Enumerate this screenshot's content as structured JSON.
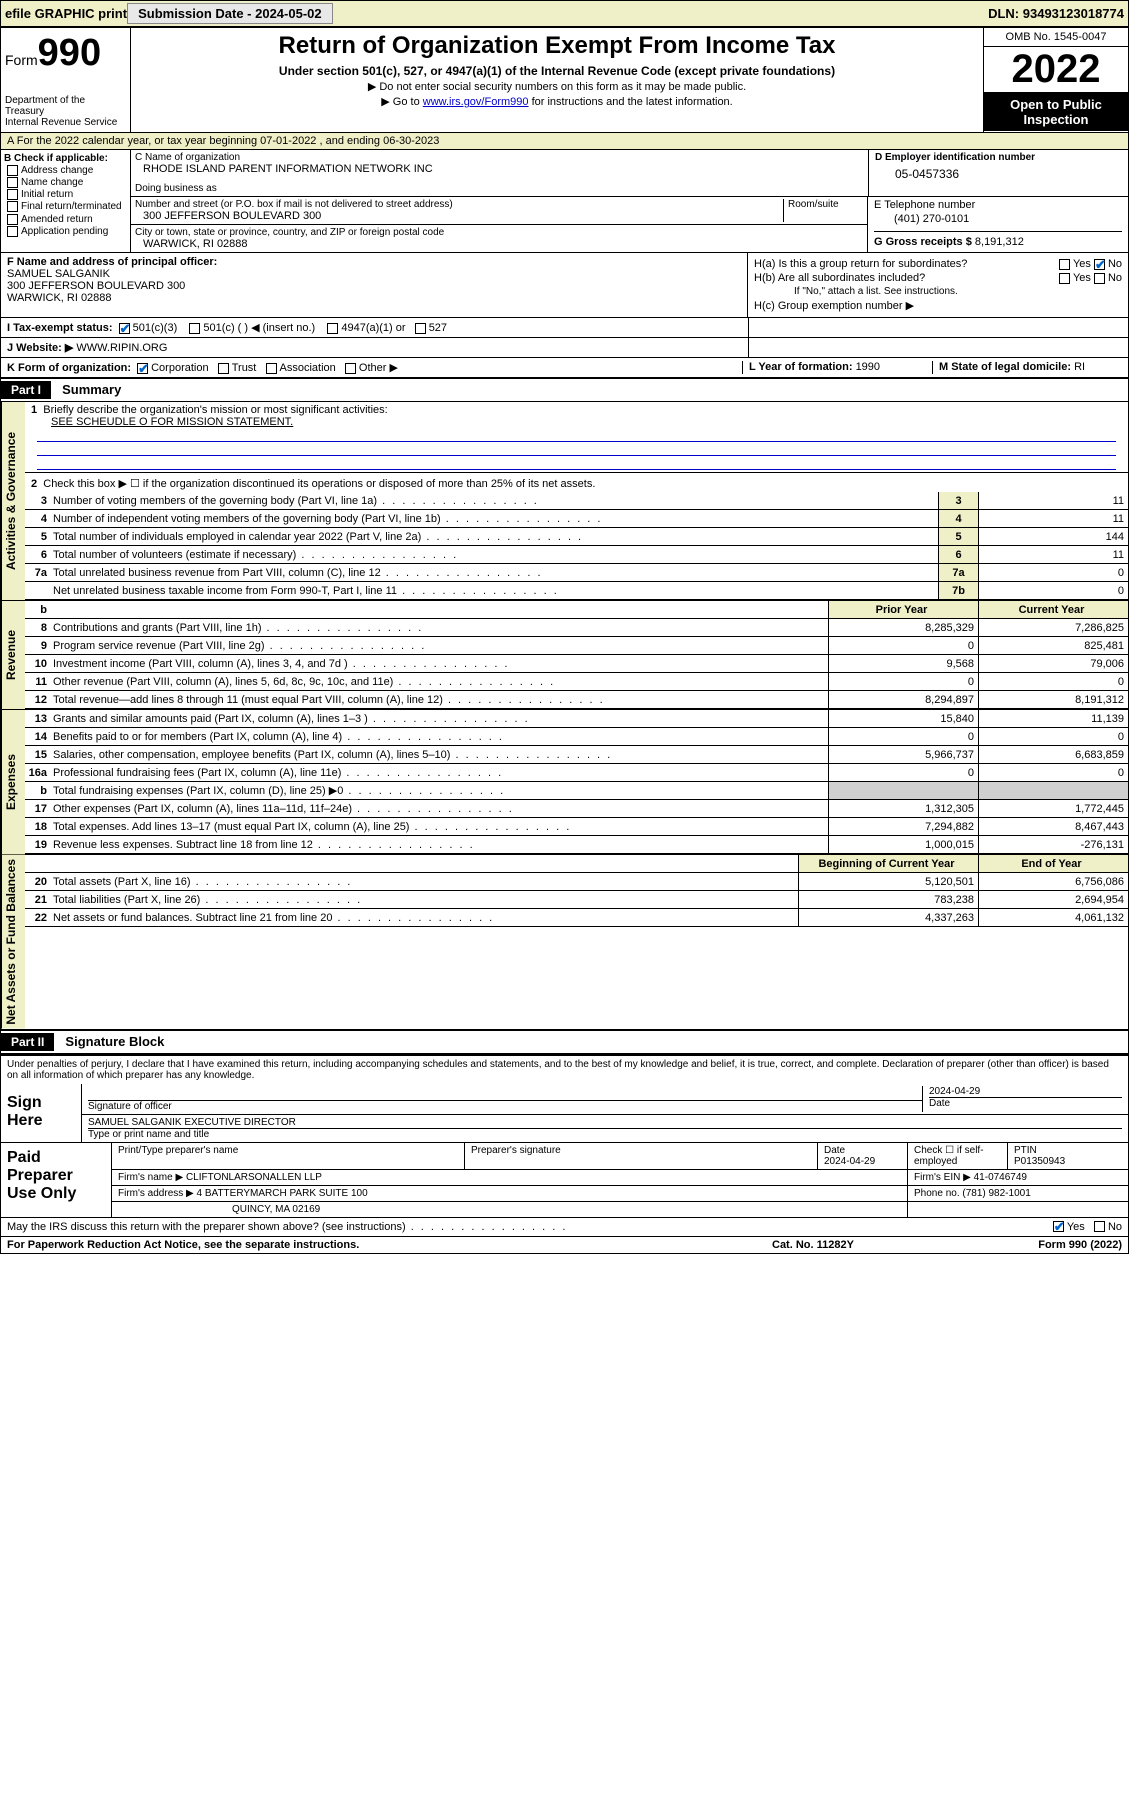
{
  "toolbar": {
    "efile": "efile GRAPHIC print",
    "submission_label": "Submission Date - ",
    "submission_date": "2024-05-02",
    "dln_label": "DLN: ",
    "dln": "93493123018774"
  },
  "header": {
    "form_word": "Form",
    "form_num": "990",
    "dept": "Department of the Treasury",
    "irs": "Internal Revenue Service",
    "title": "Return of Organization Exempt From Income Tax",
    "subtitle": "Under section 501(c), 527, or 4947(a)(1) of the Internal Revenue Code (except private foundations)",
    "note1": "▶ Do not enter social security numbers on this form as it may be made public.",
    "note2_pre": "▶ Go to ",
    "note2_link": "www.irs.gov/Form990",
    "note2_post": " for instructions and the latest information.",
    "omb": "OMB No. 1545-0047",
    "year": "2022",
    "open": "Open to Public Inspection"
  },
  "row_a": "A For the 2022 calendar year, or tax year beginning 07-01-2022  , and ending 06-30-2023",
  "b": {
    "label": "B Check if applicable:",
    "opts": [
      "Address change",
      "Name change",
      "Initial return",
      "Final return/terminated",
      "Amended return",
      "Application pending"
    ]
  },
  "c": {
    "name_label": "C Name of organization",
    "name": "RHODE ISLAND PARENT INFORMATION NETWORK INC",
    "dba_label": "Doing business as",
    "dba": "",
    "addr_label": "Number and street (or P.O. box if mail is not delivered to street address)",
    "addr": "300 JEFFERSON BOULEVARD 300",
    "room_label": "Room/suite",
    "city_label": "City or town, state or province, country, and ZIP or foreign postal code",
    "city": "WARWICK, RI  02888"
  },
  "d": {
    "label": "D Employer identification number",
    "val": "05-0457336"
  },
  "e": {
    "label": "E Telephone number",
    "val": "(401) 270-0101"
  },
  "g": {
    "label": "G Gross receipts $ ",
    "val": "8,191,312"
  },
  "f": {
    "label": "F Name and address of principal officer:",
    "name": "SAMUEL SALGANIK",
    "addr": "300 JEFFERSON BOULEVARD 300",
    "city": "WARWICK, RI  02888"
  },
  "h": {
    "a_label": "H(a)  Is this a group return for subordinates?",
    "b_label": "H(b)  Are all subordinates included?",
    "b_note": "If \"No,\" attach a list. See instructions.",
    "c_label": "H(c)  Group exemption number ▶",
    "yes": "Yes",
    "no": "No"
  },
  "i": {
    "label": "I  Tax-exempt status:",
    "o1": "501(c)(3)",
    "o2": "501(c) (  ) ◀ (insert no.)",
    "o3": "4947(a)(1) or",
    "o4": "527"
  },
  "j": {
    "label": "J  Website: ▶ ",
    "val": "WWW.RIPIN.ORG"
  },
  "k": {
    "label": "K Form of organization:",
    "o1": "Corporation",
    "o2": "Trust",
    "o3": "Association",
    "o4": "Other ▶"
  },
  "l": {
    "label": "L Year of formation: ",
    "val": "1990"
  },
  "m": {
    "label": "M State of legal domicile: ",
    "val": "RI"
  },
  "part1": {
    "tag": "Part I",
    "title": "Summary"
  },
  "summary": {
    "q1": "Briefly describe the organization's mission or most significant activities:",
    "q1val": "SEE SCHEUDLE O FOR MISSION STATEMENT.",
    "q2": "Check this box ▶ ☐  if the organization discontinued its operations or disposed of more than 25% of its net assets.",
    "lines_gov": [
      {
        "n": "3",
        "d": "Number of voting members of the governing body (Part VI, line 1a)",
        "b": "3",
        "v": "11"
      },
      {
        "n": "4",
        "d": "Number of independent voting members of the governing body (Part VI, line 1b)",
        "b": "4",
        "v": "11"
      },
      {
        "n": "5",
        "d": "Total number of individuals employed in calendar year 2022 (Part V, line 2a)",
        "b": "5",
        "v": "144"
      },
      {
        "n": "6",
        "d": "Total number of volunteers (estimate if necessary)",
        "b": "6",
        "v": "11"
      },
      {
        "n": "7a",
        "d": "Total unrelated business revenue from Part VIII, column (C), line 12",
        "b": "7a",
        "v": "0"
      },
      {
        "n": "",
        "d": "Net unrelated business taxable income from Form 990-T, Part I, line 11",
        "b": "7b",
        "v": "0"
      }
    ],
    "hdr_prior": "Prior Year",
    "hdr_curr": "Current Year",
    "lines_rev": [
      {
        "n": "8",
        "d": "Contributions and grants (Part VIII, line 1h)",
        "p": "8,285,329",
        "c": "7,286,825"
      },
      {
        "n": "9",
        "d": "Program service revenue (Part VIII, line 2g)",
        "p": "0",
        "c": "825,481"
      },
      {
        "n": "10",
        "d": "Investment income (Part VIII, column (A), lines 3, 4, and 7d )",
        "p": "9,568",
        "c": "79,006"
      },
      {
        "n": "11",
        "d": "Other revenue (Part VIII, column (A), lines 5, 6d, 8c, 9c, 10c, and 11e)",
        "p": "0",
        "c": "0"
      },
      {
        "n": "12",
        "d": "Total revenue—add lines 8 through 11 (must equal Part VIII, column (A), line 12)",
        "p": "8,294,897",
        "c": "8,191,312"
      }
    ],
    "lines_exp": [
      {
        "n": "13",
        "d": "Grants and similar amounts paid (Part IX, column (A), lines 1–3 )",
        "p": "15,840",
        "c": "11,139"
      },
      {
        "n": "14",
        "d": "Benefits paid to or for members (Part IX, column (A), line 4)",
        "p": "0",
        "c": "0"
      },
      {
        "n": "15",
        "d": "Salaries, other compensation, employee benefits (Part IX, column (A), lines 5–10)",
        "p": "5,966,737",
        "c": "6,683,859"
      },
      {
        "n": "16a",
        "d": "Professional fundraising fees (Part IX, column (A), line 11e)",
        "p": "0",
        "c": "0"
      },
      {
        "n": "b",
        "d": "Total fundraising expenses (Part IX, column (D), line 25) ▶0",
        "p": "",
        "c": "",
        "shade": true
      },
      {
        "n": "17",
        "d": "Other expenses (Part IX, column (A), lines 11a–11d, 11f–24e)",
        "p": "1,312,305",
        "c": "1,772,445"
      },
      {
        "n": "18",
        "d": "Total expenses. Add lines 13–17 (must equal Part IX, column (A), line 25)",
        "p": "7,294,882",
        "c": "8,467,443"
      },
      {
        "n": "19",
        "d": "Revenue less expenses. Subtract line 18 from line 12",
        "p": "1,000,015",
        "c": "-276,131"
      }
    ],
    "hdr_beg": "Beginning of Current Year",
    "hdr_end": "End of Year",
    "lines_net": [
      {
        "n": "20",
        "d": "Total assets (Part X, line 16)",
        "p": "5,120,501",
        "c": "6,756,086"
      },
      {
        "n": "21",
        "d": "Total liabilities (Part X, line 26)",
        "p": "783,238",
        "c": "2,694,954"
      },
      {
        "n": "22",
        "d": "Net assets or fund balances. Subtract line 21 from line 20",
        "p": "4,337,263",
        "c": "4,061,132"
      }
    ],
    "tabs": [
      "Activities & Governance",
      "Revenue",
      "Expenses",
      "Net Assets or Fund Balances"
    ]
  },
  "part2": {
    "tag": "Part II",
    "title": "Signature Block"
  },
  "sig": {
    "decl": "Under penalties of perjury, I declare that I have examined this return, including accompanying schedules and statements, and to the best of my knowledge and belief, it is true, correct, and complete. Declaration of preparer (other than officer) is based on all information of which preparer has any knowledge.",
    "sign_here": "Sign Here",
    "sig_officer": "Signature of officer",
    "date": "Date",
    "date_val": "2024-04-29",
    "name_title": "SAMUEL SALGANIK  EXECUTIVE DIRECTOR",
    "name_label": "Type or print name and title"
  },
  "prep": {
    "label": "Paid Preparer Use Only",
    "h1": "Print/Type preparer's name",
    "h2": "Preparer's signature",
    "h3": "Date",
    "h3v": "2024-04-29",
    "h4": "Check ☐ if self-employed",
    "h5": "PTIN",
    "h5v": "P01350943",
    "firm_label": "Firm's name   ▶ ",
    "firm": "CLIFTONLARSONALLEN LLP",
    "ein_label": "Firm's EIN ▶ ",
    "ein": "41-0746749",
    "addr_label": "Firm's address ▶ ",
    "addr": "4 BATTERYMARCH PARK SUITE 100",
    "addr2": "QUINCY, MA  02169",
    "phone_label": "Phone no. ",
    "phone": "(781) 982-1001",
    "discuss": "May the IRS discuss this return with the preparer shown above? (see instructions)",
    "yes": "Yes",
    "no": "No"
  },
  "footer": {
    "l": "For Paperwork Reduction Act Notice, see the separate instructions.",
    "m": "Cat. No. 11282Y",
    "r": "Form 990 (2022)"
  }
}
